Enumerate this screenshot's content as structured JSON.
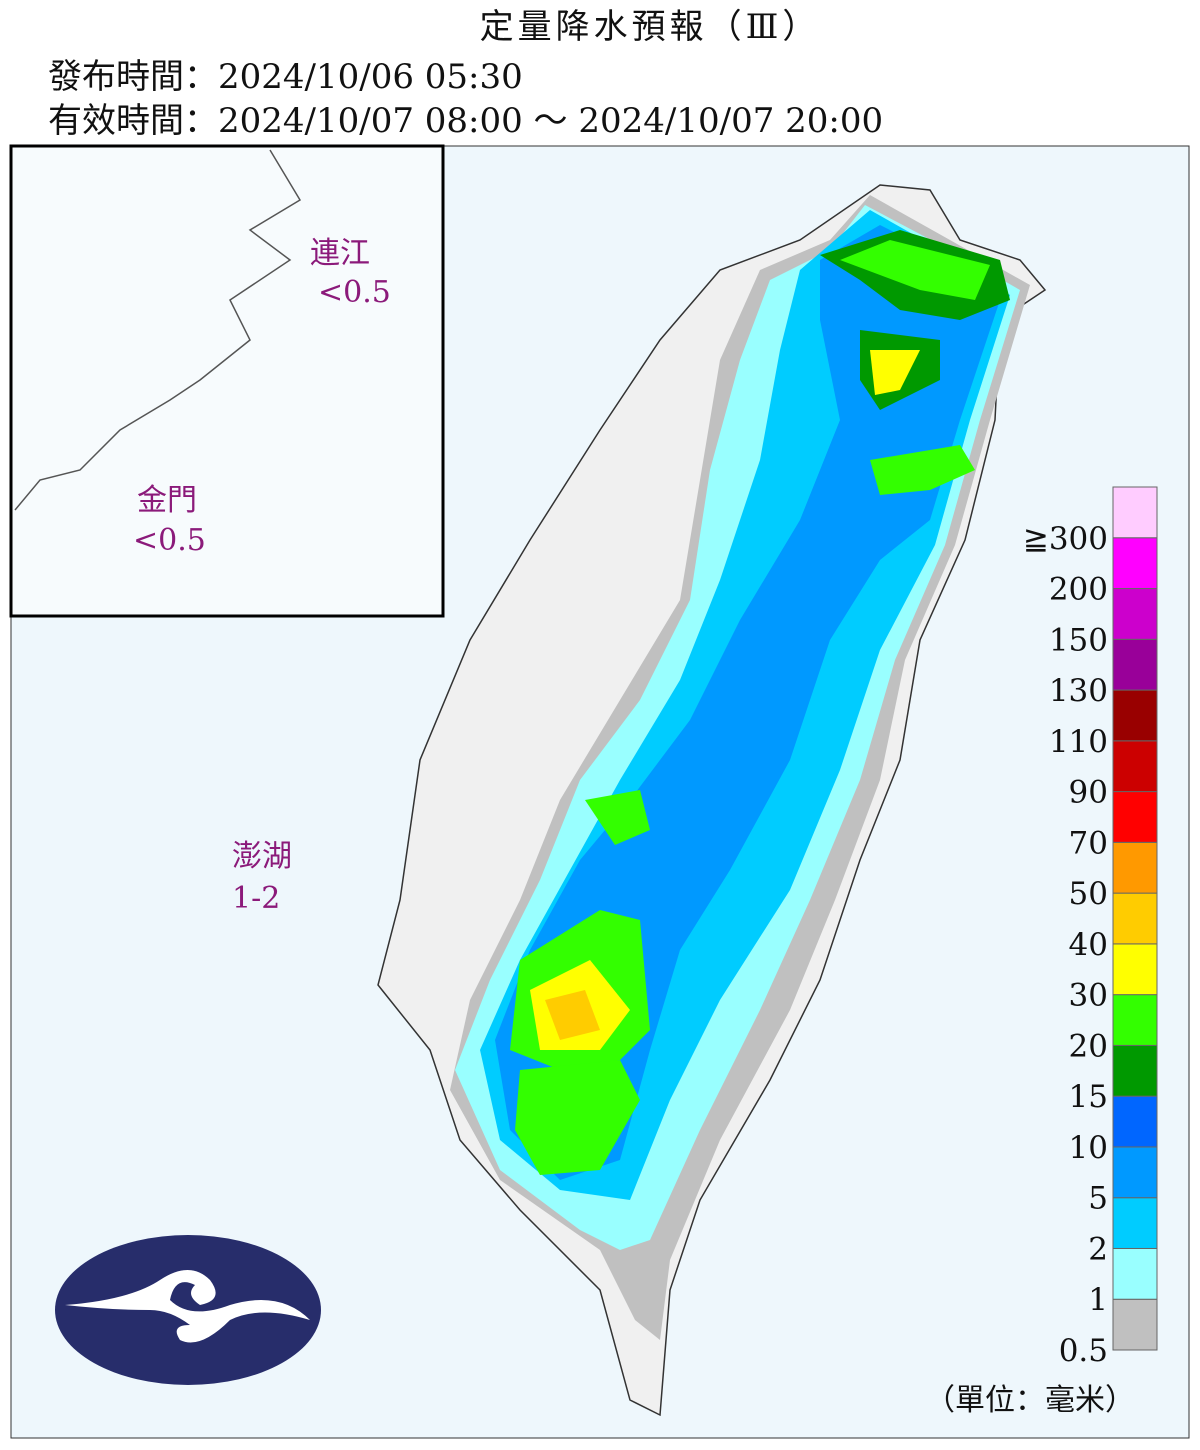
{
  "header": {
    "title": "定量降水預報（Ⅲ）",
    "issued": "發布時間：2024/10/06 05:30",
    "valid": "有效時間：2024/10/07 08:00 ～ 2024/10/07 20:00"
  },
  "regions": [
    {
      "name": "連江",
      "value": "<0.5"
    },
    {
      "name": "金門",
      "value": "<0.5"
    },
    {
      "name": "澎湖",
      "value": "1-2"
    }
  ],
  "legend": {
    "labels": [
      "0.5",
      "1",
      "2",
      "5",
      "10",
      "15",
      "20",
      "30",
      "40",
      "50",
      "70",
      "90",
      "110",
      "130",
      "150",
      "200",
      "≧300"
    ],
    "colors": [
      "#c0c0c0",
      "#99ffff",
      "#00ccff",
      "#0099ff",
      "#0066ff",
      "#009900",
      "#33ff00",
      "#ffff00",
      "#ffcc00",
      "#ff9900",
      "#ff0000",
      "#cc0000",
      "#990000",
      "#990099",
      "#cc00cc",
      "#ff00ff",
      "#ffccff"
    ],
    "unit": "（單位：毫米）"
  }
}
